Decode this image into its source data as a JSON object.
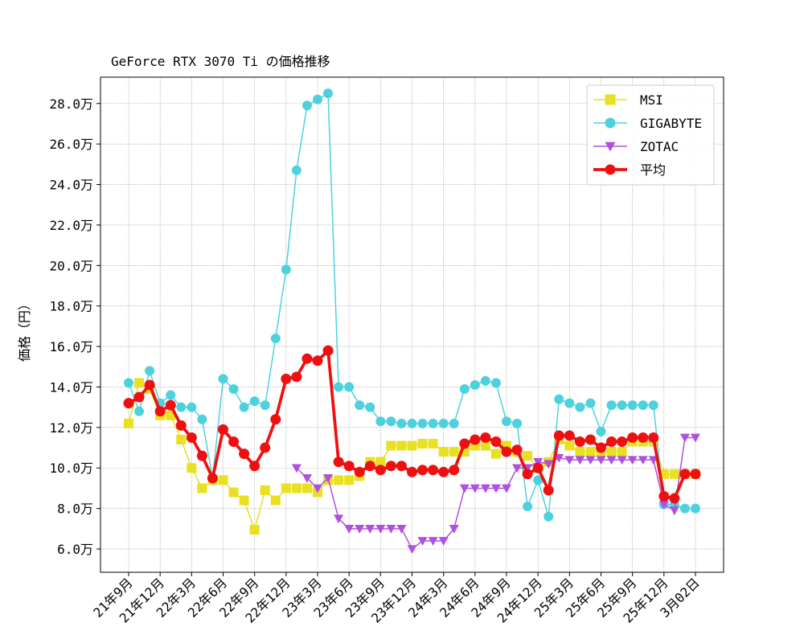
{
  "chart_data": {
    "type": "line",
    "title": "GeForce RTX 3070 Ti の価格推移",
    "y_label": "価格（円）",
    "categories": [
      "21年9月",
      null,
      null,
      "21年12月",
      null,
      null,
      "22年3月",
      null,
      null,
      "22年6月",
      null,
      null,
      "22年9月",
      null,
      null,
      "22年12月",
      null,
      null,
      "23年3月",
      null,
      null,
      "23年6月",
      null,
      null,
      "23年9月",
      null,
      null,
      "23年12月",
      null,
      null,
      "24年3月",
      null,
      null,
      "24年6月",
      null,
      null,
      "24年9月",
      null,
      null,
      "24年12月",
      null,
      null,
      "25年3月",
      null,
      null,
      "25年6月",
      null,
      null,
      "25年9月",
      null,
      null,
      "25年12月",
      null,
      null,
      "3月02日"
    ],
    "ylim": [
      4.85,
      29.3
    ],
    "yticks": [
      {
        "value": 6,
        "label": "6.0万"
      },
      {
        "value": 8,
        "label": "8.0万"
      },
      {
        "value": 10,
        "label": "10.0万"
      },
      {
        "value": 12,
        "label": "12.0万"
      },
      {
        "value": 14,
        "label": "14.0万"
      },
      {
        "value": 16,
        "label": "16.0万"
      },
      {
        "value": 18,
        "label": "18.0万"
      },
      {
        "value": 20,
        "label": "20.0万"
      },
      {
        "value": 22,
        "label": "22.0万"
      },
      {
        "value": 24,
        "label": "24.0万"
      },
      {
        "value": 26,
        "label": "26.0万"
      },
      {
        "value": 28,
        "label": "28.0万"
      }
    ],
    "grid": true,
    "legend": "upper right",
    "series": [
      {
        "name": "MSI",
        "color": "#e8e020",
        "marker": "square",
        "linewidth": 1,
        "values": [
          12.2,
          14.2,
          13.9,
          12.6,
          12.6,
          11.4,
          10.0,
          9.0,
          9.4,
          9.4,
          8.8,
          8.4,
          6.95,
          8.9,
          8.4,
          9.0,
          9.0,
          9.0,
          8.8,
          9.4,
          9.4,
          9.4,
          9.6,
          10.3,
          10.3,
          11.1,
          11.1,
          11.1,
          11.2,
          11.2,
          10.8,
          10.8,
          10.8,
          11.1,
          11.1,
          10.7,
          11.1,
          10.8,
          10.6,
          10.0,
          10.3,
          11.4,
          11.1,
          10.8,
          10.8,
          10.8,
          10.8,
          10.8,
          11.3,
          11.3,
          11.3,
          9.7,
          9.7,
          9.7,
          9.7
        ]
      },
      {
        "name": "GIGABYTE",
        "color": "#4dd2dd",
        "marker": "circle",
        "linewidth": 1,
        "values": [
          14.2,
          12.8,
          14.8,
          13.2,
          13.6,
          13.0,
          13.0,
          12.4,
          9.5,
          14.4,
          13.9,
          13.0,
          13.3,
          13.1,
          16.4,
          19.8,
          24.7,
          27.9,
          28.2,
          28.5,
          14.0,
          14.0,
          13.1,
          13.0,
          12.3,
          12.3,
          12.2,
          12.2,
          12.2,
          12.2,
          12.2,
          12.2,
          13.9,
          14.1,
          14.3,
          14.2,
          12.3,
          12.2,
          8.1,
          9.4,
          7.6,
          13.4,
          13.2,
          13.0,
          13.2,
          11.8,
          13.1,
          13.1,
          13.1,
          13.1,
          13.1,
          8.2,
          8.2,
          8.0,
          8.0
        ]
      },
      {
        "name": "ZOTAC",
        "color": "#b050e0",
        "marker": "triangle-down",
        "linewidth": 1,
        "values": [
          null,
          null,
          null,
          null,
          null,
          null,
          null,
          null,
          null,
          null,
          null,
          null,
          null,
          null,
          null,
          null,
          10.0,
          9.5,
          9.0,
          9.5,
          7.5,
          7.0,
          7.0,
          7.0,
          7.0,
          7.0,
          7.0,
          6.0,
          6.4,
          6.4,
          6.4,
          7.0,
          9.0,
          9.0,
          9.0,
          9.0,
          9.0,
          10.0,
          10.0,
          10.3,
          10.2,
          10.5,
          10.4,
          10.4,
          10.4,
          10.4,
          10.4,
          10.4,
          10.4,
          10.4,
          10.4,
          8.2,
          7.9,
          11.5,
          11.5
        ]
      },
      {
        "name": "平均",
        "color": "#ee1010",
        "marker": "circle",
        "linewidth": 2.5,
        "values": [
          13.2,
          13.5,
          14.1,
          12.8,
          13.1,
          12.1,
          11.5,
          10.6,
          9.5,
          11.9,
          11.3,
          10.7,
          10.1,
          11.0,
          12.4,
          14.4,
          14.5,
          15.4,
          15.3,
          15.8,
          10.3,
          10.1,
          9.8,
          10.1,
          9.9,
          10.1,
          10.1,
          9.8,
          9.9,
          9.9,
          9.8,
          9.9,
          11.2,
          11.4,
          11.5,
          11.3,
          10.8,
          10.9,
          9.7,
          10.0,
          8.9,
          11.6,
          11.6,
          11.3,
          11.4,
          11.0,
          11.3,
          11.3,
          11.5,
          11.5,
          11.5,
          8.6,
          8.5,
          9.7,
          9.7
        ]
      }
    ]
  }
}
